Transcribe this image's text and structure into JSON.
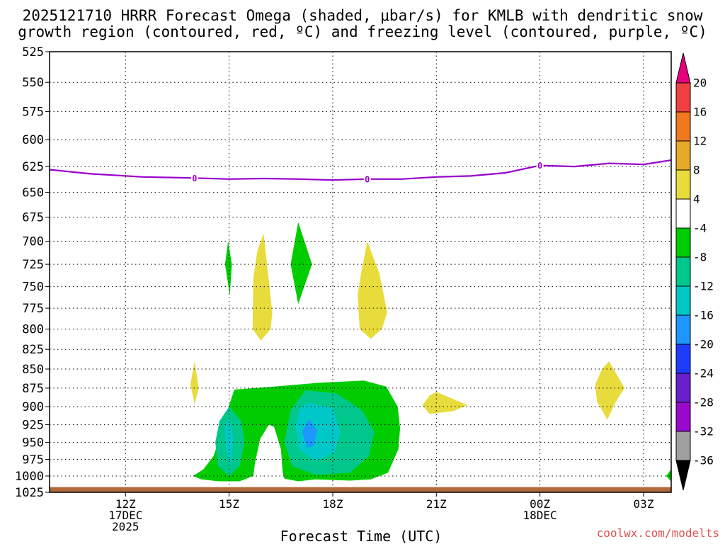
{
  "chart_data": {
    "type": "heatmap",
    "title_line1": "2025121710 HRRR Forecast Omega (shaded, μbar/s) for KMLB with dendritic snow",
    "title_line2": "growth region (contoured, red, ºC) and freezing level (contoured, purple, ºC)",
    "xlabel": "Forecast Time (UTC)",
    "ylabel": "",
    "credit": "coolwx.com/modelts",
    "x_range_hours": [
      9.8,
      27.8
    ],
    "y_range_mb": [
      1025,
      525
    ],
    "y_ticks": [
      525,
      550,
      575,
      600,
      625,
      650,
      675,
      700,
      725,
      750,
      775,
      800,
      825,
      850,
      875,
      900,
      925,
      950,
      975,
      1000,
      1025
    ],
    "x_ticks": [
      {
        "hour": 12,
        "lines": [
          "12Z",
          "17DEC",
          "2025"
        ]
      },
      {
        "hour": 15,
        "lines": [
          "15Z"
        ]
      },
      {
        "hour": 18,
        "lines": [
          "18Z"
        ]
      },
      {
        "hour": 21,
        "lines": [
          "21Z"
        ]
      },
      {
        "hour": 24,
        "lines": [
          "00Z",
          "18DEC"
        ]
      },
      {
        "hour": 27,
        "lines": [
          "03Z"
        ]
      }
    ],
    "grid": true,
    "colorbar": {
      "tick_labels": [
        "20",
        "16",
        "12",
        "8",
        "4",
        "-4",
        "-8",
        "-12",
        "-16",
        "-20",
        "-24",
        "-28",
        "-32",
        "-36"
      ],
      "bins": [
        {
          "range": [
            20,
            24
          ],
          "color": "#e6007e"
        },
        {
          "range": [
            16,
            20
          ],
          "color": "#f04040"
        },
        {
          "range": [
            12,
            16
          ],
          "color": "#f07820"
        },
        {
          "range": [
            8,
            12
          ],
          "color": "#e8a828"
        },
        {
          "range": [
            4,
            8
          ],
          "color": "#e8dc3c"
        },
        {
          "range": [
            -4,
            4
          ],
          "color": "#ffffff"
        },
        {
          "range": [
            -8,
            -4
          ],
          "color": "#00cc00"
        },
        {
          "range": [
            -12,
            -8
          ],
          "color": "#00c88c"
        },
        {
          "range": [
            -16,
            -12
          ],
          "color": "#00c8c8"
        },
        {
          "range": [
            -20,
            -16
          ],
          "color": "#1e96ff"
        },
        {
          "range": [
            -24,
            -20
          ],
          "color": "#1e3cff"
        },
        {
          "range": [
            -28,
            -24
          ],
          "color": "#6a1ecc"
        },
        {
          "range": [
            -32,
            -28
          ],
          "color": "#9a0acc"
        },
        {
          "range": [
            -36,
            -32
          ],
          "color": "#a0a0a0"
        },
        {
          "range": [
            -40,
            -36
          ],
          "color": "#000000"
        }
      ]
    },
    "freezing_level": {
      "color": "#9900cc",
      "label": "0",
      "label_hours": [
        14.0,
        19.0,
        24.0
      ],
      "points": [
        [
          9.8,
          628
        ],
        [
          11.0,
          632
        ],
        [
          12.5,
          635
        ],
        [
          14.0,
          636
        ],
        [
          15.0,
          637
        ],
        [
          16.0,
          636.5
        ],
        [
          17.0,
          637
        ],
        [
          18.0,
          638
        ],
        [
          19.0,
          637
        ],
        [
          20.0,
          637
        ],
        [
          21.0,
          635
        ],
        [
          22.0,
          634
        ],
        [
          23.0,
          631
        ],
        [
          24.0,
          624
        ],
        [
          25.0,
          625
        ],
        [
          26.0,
          622
        ],
        [
          27.0,
          623
        ],
        [
          27.8,
          619
        ]
      ]
    },
    "omega_regions": [
      {
        "value": 6,
        "color": "#e8dc3c",
        "polygon": [
          [
            14.0,
            840
          ],
          [
            14.12,
            875
          ],
          [
            14.0,
            897
          ],
          [
            13.88,
            870
          ]
        ]
      },
      {
        "value": 6,
        "color": "#e8dc3c",
        "polygon": [
          [
            16.0,
            692
          ],
          [
            16.25,
            780
          ],
          [
            16.2,
            800
          ],
          [
            15.92,
            814
          ],
          [
            15.68,
            800
          ],
          [
            15.7,
            740
          ],
          [
            15.82,
            710
          ]
        ]
      },
      {
        "value": 6,
        "color": "#e8dc3c",
        "polygon": [
          [
            19.0,
            700
          ],
          [
            19.35,
            735
          ],
          [
            19.58,
            780
          ],
          [
            19.42,
            800
          ],
          [
            19.1,
            812
          ],
          [
            18.78,
            800
          ],
          [
            18.72,
            760
          ],
          [
            18.82,
            735
          ]
        ]
      },
      {
        "value": 6,
        "color": "#e8dc3c",
        "polygon": [
          [
            21.0,
            880
          ],
          [
            21.9,
            898
          ],
          [
            21.5,
            906
          ],
          [
            20.8,
            910
          ],
          [
            20.6,
            898
          ],
          [
            20.8,
            885
          ]
        ]
      },
      {
        "value": 6,
        "color": "#e8dc3c",
        "polygon": [
          [
            26.0,
            840
          ],
          [
            26.45,
            875
          ],
          [
            26.2,
            893
          ],
          [
            25.95,
            918
          ],
          [
            25.65,
            893
          ],
          [
            25.6,
            870
          ],
          [
            25.8,
            850
          ]
        ]
      },
      {
        "value": -6,
        "color": "#00cc00",
        "polygon": [
          [
            14.97,
            700
          ],
          [
            15.08,
            725
          ],
          [
            15.02,
            760
          ],
          [
            14.88,
            725
          ]
        ]
      },
      {
        "value": -6,
        "color": "#00cc00",
        "polygon": [
          [
            17.0,
            680
          ],
          [
            17.4,
            725
          ],
          [
            17.0,
            770
          ],
          [
            16.78,
            725
          ]
        ]
      },
      {
        "value": -6,
        "color": "#00cc00",
        "polygon": [
          [
            27.8,
            990
          ],
          [
            27.8,
            1008
          ],
          [
            27.65,
            1000
          ]
        ]
      },
      {
        "value": -6,
        "color": "#00cc00",
        "polygon": [
          [
            15.15,
            877
          ],
          [
            16.3,
            873
          ],
          [
            17.6,
            868
          ],
          [
            18.9,
            865
          ],
          [
            19.55,
            873
          ],
          [
            19.88,
            900
          ],
          [
            19.95,
            930
          ],
          [
            19.9,
            960
          ],
          [
            19.6,
            995
          ],
          [
            19.1,
            1005
          ],
          [
            18.5,
            1007
          ],
          [
            17.5,
            1005
          ],
          [
            17.0,
            1008
          ],
          [
            16.6,
            1004
          ],
          [
            16.55,
            995
          ],
          [
            16.5,
            960
          ],
          [
            16.3,
            928
          ],
          [
            16.15,
            925
          ],
          [
            15.9,
            945
          ],
          [
            15.75,
            980
          ],
          [
            15.7,
            1000
          ],
          [
            15.3,
            1008
          ],
          [
            14.7,
            1008
          ],
          [
            14.2,
            1005
          ],
          [
            13.95,
            1000
          ],
          [
            14.25,
            990
          ],
          [
            14.55,
            970
          ],
          [
            14.75,
            940
          ],
          [
            14.95,
            905
          ]
        ]
      },
      {
        "value": -10,
        "color": "#00c88c",
        "polygon": [
          [
            15.0,
            900
          ],
          [
            15.35,
            920
          ],
          [
            15.45,
            950
          ],
          [
            15.3,
            985
          ],
          [
            15.0,
            1000
          ],
          [
            14.68,
            985
          ],
          [
            14.6,
            950
          ],
          [
            14.72,
            920
          ]
        ]
      },
      {
        "value": -10,
        "color": "#00c88c",
        "polygon": [
          [
            17.2,
            878
          ],
          [
            18.1,
            882
          ],
          [
            18.85,
            905
          ],
          [
            19.2,
            935
          ],
          [
            19.05,
            970
          ],
          [
            18.5,
            995
          ],
          [
            17.5,
            998
          ],
          [
            16.82,
            985
          ],
          [
            16.6,
            950
          ],
          [
            16.78,
            905
          ]
        ]
      },
      {
        "value": -14,
        "color": "#00c8c8",
        "polygon": [
          [
            15.0,
            915
          ],
          [
            15.12,
            945
          ],
          [
            15.05,
            985
          ],
          [
            14.9,
            960
          ],
          [
            14.88,
            930
          ]
        ]
      },
      {
        "value": -14,
        "color": "#00c8c8",
        "polygon": [
          [
            17.3,
            895
          ],
          [
            18.0,
            902
          ],
          [
            18.22,
            935
          ],
          [
            18.05,
            965
          ],
          [
            17.5,
            978
          ],
          [
            17.02,
            960
          ],
          [
            16.92,
            925
          ],
          [
            17.05,
            902
          ]
        ]
      },
      {
        "value": -18,
        "color": "#1e96ff",
        "polygon": [
          [
            17.3,
            917
          ],
          [
            17.55,
            933
          ],
          [
            17.45,
            955
          ],
          [
            17.25,
            958
          ],
          [
            17.12,
            935
          ]
        ]
      }
    ],
    "ground": {
      "color": "#b36a3a",
      "top_mb": 1017
    }
  }
}
